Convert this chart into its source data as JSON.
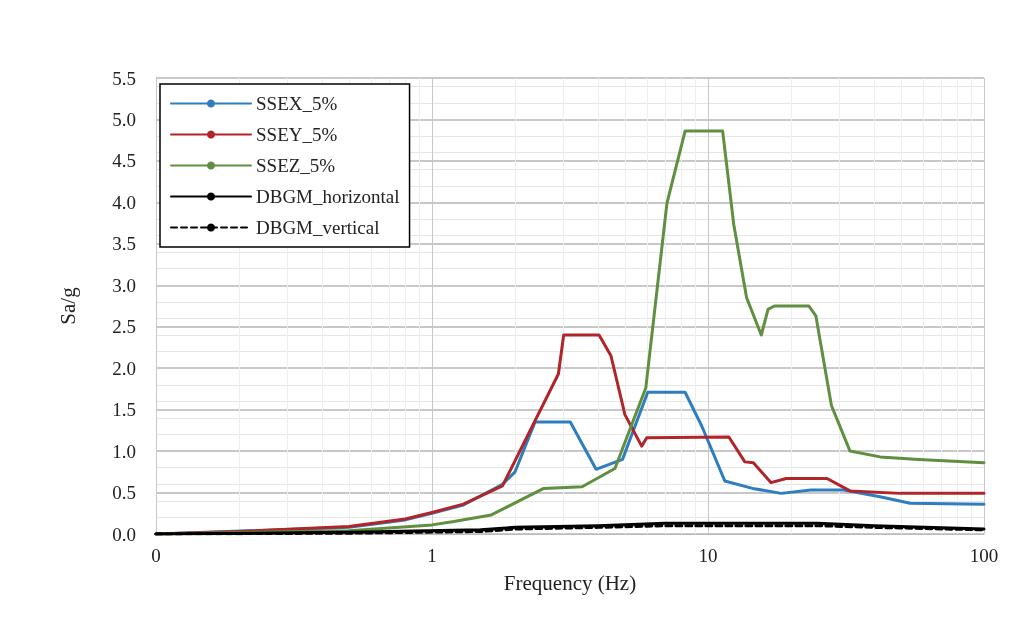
{
  "chart_data": {
    "type": "line",
    "xlabel": "Frequency (Hz)",
    "ylabel": "Sa/g",
    "log": "x",
    "grid": true,
    "legend": "top left",
    "marker": "none",
    "xlim": [
      0.1,
      100
    ],
    "xticks": [
      {
        "value": 0.1,
        "label": "0"
      },
      1,
      10,
      100
    ],
    "ylim": [
      0,
      5.5
    ],
    "yticks": [
      {
        "value": 0,
        "label": "0.0"
      },
      {
        "value": 0.5,
        "label": "0.5"
      },
      {
        "value": 1,
        "label": "1.0"
      },
      {
        "value": 1.5,
        "label": "1.5"
      },
      {
        "value": 2,
        "label": "2.0"
      },
      {
        "value": 2.5,
        "label": "2.5"
      },
      {
        "value": 3,
        "label": "3.0"
      },
      {
        "value": 3.5,
        "label": "3.5"
      },
      {
        "value": 4,
        "label": "4.0"
      },
      {
        "value": 4.5,
        "label": "4.5"
      },
      {
        "value": 5,
        "label": "5.0"
      },
      {
        "value": 5.5,
        "label": "5.5"
      }
    ],
    "series": [
      {
        "name": "SSEX_5%",
        "color": "#2e7ebf",
        "line_style": "solid",
        "x": [
          0.1,
          0.5,
          0.8,
          1.0,
          1.3,
          1.8,
          2.0,
          2.36,
          3.17,
          3.93,
          4.9,
          6.05,
          8.26,
          9.5,
          11.5,
          14.5,
          18.4,
          23.6,
          31,
          42,
          54,
          100
        ],
        "values": [
          0,
          0.08,
          0.17,
          0.25,
          0.35,
          0.6,
          0.75,
          1.35,
          1.35,
          0.78,
          0.9,
          1.71,
          1.71,
          1.3,
          0.64,
          0.55,
          0.49,
          0.53,
          0.53,
          0.45,
          0.37,
          0.36
        ]
      },
      {
        "name": "SSEY_5%",
        "color": "#b0252a",
        "line_style": "solid",
        "x": [
          0.1,
          0.2,
          0.5,
          0.8,
          1.0,
          1.3,
          1.8,
          2.87,
          3.0,
          4.03,
          4.45,
          5.0,
          5.75,
          6.0,
          11.9,
          13.6,
          14.6,
          16.9,
          19.2,
          27,
          32.7,
          49.7,
          100
        ],
        "values": [
          0,
          0.03,
          0.09,
          0.18,
          0.26,
          0.36,
          0.58,
          1.93,
          2.4,
          2.4,
          2.15,
          1.44,
          1.06,
          1.16,
          1.17,
          0.87,
          0.86,
          0.62,
          0.67,
          0.67,
          0.52,
          0.49,
          0.49
        ]
      },
      {
        "name": "SSEZ_5%",
        "color": "#5f8f3f",
        "line_style": "solid",
        "x": [
          0.1,
          0.5,
          1.0,
          1.2,
          1.64,
          2.54,
          3.5,
          4.6,
          5.95,
          7.1,
          8.26,
          11.3,
          12.4,
          13.8,
          15.6,
          16.5,
          17.4,
          23.2,
          24.6,
          28,
          32.7,
          42,
          58,
          100
        ],
        "values": [
          0,
          0.04,
          0.11,
          0.15,
          0.23,
          0.55,
          0.57,
          0.79,
          1.76,
          3.99,
          4.86,
          4.86,
          3.73,
          2.85,
          2.4,
          2.71,
          2.75,
          2.75,
          2.63,
          1.55,
          1.0,
          0.93,
          0.9,
          0.86
        ]
      },
      {
        "name": "DBGM_horizontal",
        "color": "#000000",
        "line_style": "solid",
        "x": [
          0.1,
          0.5,
          1.5,
          2,
          4,
          7,
          25,
          40,
          100
        ],
        "values": [
          0,
          0.02,
          0.05,
          0.08,
          0.1,
          0.13,
          0.13,
          0.1,
          0.06
        ]
      },
      {
        "name": "DBGM_vertical",
        "color": "#000000",
        "line_style": "dashed",
        "x": [
          0.1,
          0.5,
          1.5,
          2,
          4,
          7,
          25,
          40,
          100
        ],
        "values": [
          0,
          0.01,
          0.03,
          0.06,
          0.08,
          0.1,
          0.1,
          0.08,
          0.05
        ]
      }
    ]
  }
}
